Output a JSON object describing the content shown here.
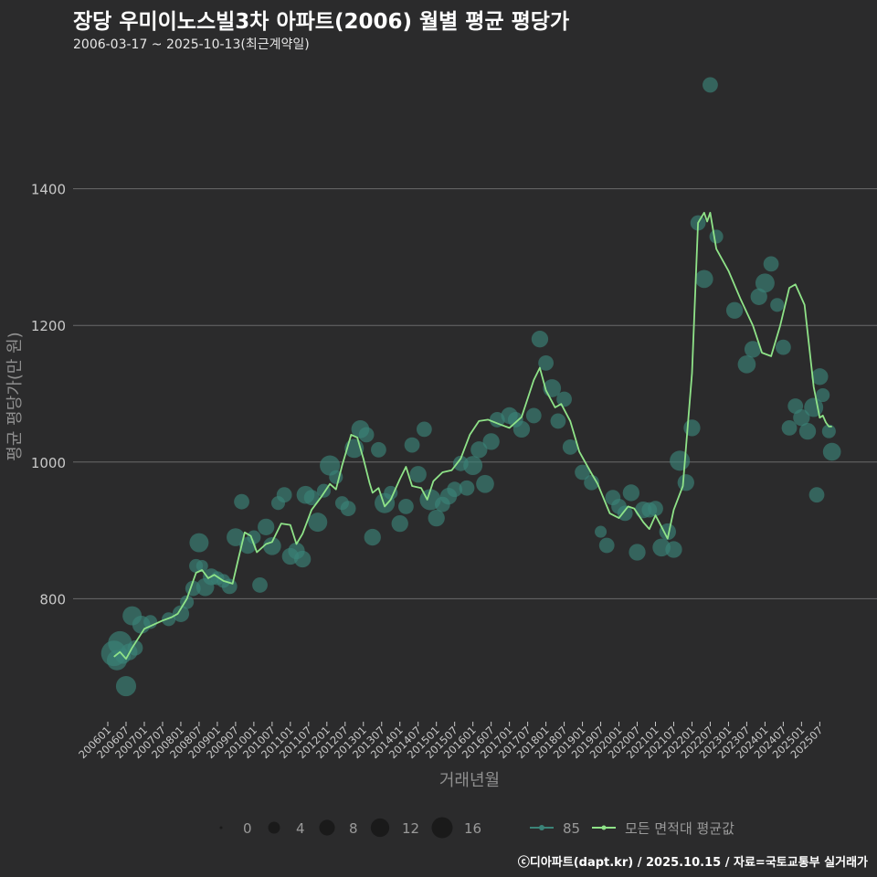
{
  "title": "장당 우미이노스빌3차 아파트(2006) 월별 평균 평당가",
  "subtitle": "2006-03-17 ~ 2025-10-13(최근계약일)",
  "credit": "ⓒ디아파트(dapt.kr) / 2025.10.15 / 자료=국토교통부 실거래가",
  "colors": {
    "background": "#2b2b2c",
    "grid": "#6a6a6a",
    "line": "#8fe388",
    "point": "#3b8378",
    "legend_size_point": "#1a1a1a",
    "axis_text": "#c8c8c8"
  },
  "chart_data": {
    "type": "line+scatter",
    "xlabel": "거래년월",
    "ylabel": "평균 평당가(만 원)",
    "ylim": [
      620,
      1580
    ],
    "yticks": [
      800,
      1000,
      1200,
      1400
    ],
    "xlim": [
      "2006-01",
      "2025-12"
    ],
    "xticks": [
      "200601",
      "200607",
      "200701",
      "200707",
      "200801",
      "200807",
      "200901",
      "200907",
      "201001",
      "201007",
      "201101",
      "201107",
      "201201",
      "201207",
      "201301",
      "201307",
      "201401",
      "201407",
      "201501",
      "201507",
      "201601",
      "201607",
      "201701",
      "201707",
      "201801",
      "201807",
      "201901",
      "201907",
      "202001",
      "202007",
      "202101",
      "202107",
      "202201",
      "202207",
      "202301",
      "202307",
      "202401",
      "202407",
      "202501",
      "202507"
    ],
    "legend_size": {
      "title": "",
      "values": [
        0,
        4,
        8,
        12,
        16
      ]
    },
    "legend_series": [
      {
        "name": "85",
        "kind": "point-line"
      },
      {
        "name": "모든 면적대 평균값",
        "kind": "line"
      }
    ],
    "series_line": {
      "name": "모든 면적대 평균값",
      "points": [
        [
          "2006-03",
          715
        ],
        [
          "2006-05",
          722
        ],
        [
          "2006-07",
          712
        ],
        [
          "2006-09",
          728
        ],
        [
          "2007-01",
          756
        ],
        [
          "2007-07",
          768
        ],
        [
          "2007-10",
          773
        ],
        [
          "2007-12",
          778
        ],
        [
          "2008-03",
          800
        ],
        [
          "2008-06",
          838
        ],
        [
          "2008-08",
          842
        ],
        [
          "2008-10",
          830
        ],
        [
          "2008-12",
          835
        ],
        [
          "2009-03",
          826
        ],
        [
          "2009-06",
          822
        ],
        [
          "2009-08",
          860
        ],
        [
          "2009-10",
          897
        ],
        [
          "2009-12",
          892
        ],
        [
          "2010-02",
          868
        ],
        [
          "2010-05",
          880
        ],
        [
          "2010-07",
          883
        ],
        [
          "2010-10",
          910
        ],
        [
          "2011-01",
          908
        ],
        [
          "2011-03",
          880
        ],
        [
          "2011-05",
          895
        ],
        [
          "2011-08",
          930
        ],
        [
          "2011-11",
          948
        ],
        [
          "2012-02",
          968
        ],
        [
          "2012-04",
          960
        ],
        [
          "2012-06",
          995
        ],
        [
          "2012-09",
          1040
        ],
        [
          "2012-11",
          1036
        ],
        [
          "2013-01",
          1005
        ],
        [
          "2013-03",
          970
        ],
        [
          "2013-04",
          955
        ],
        [
          "2013-06",
          962
        ],
        [
          "2013-08",
          935
        ],
        [
          "2013-10",
          945
        ],
        [
          "2014-01",
          975
        ],
        [
          "2014-03",
          993
        ],
        [
          "2014-05",
          965
        ],
        [
          "2014-08",
          962
        ],
        [
          "2014-10",
          945
        ],
        [
          "2014-12",
          972
        ],
        [
          "2015-03",
          985
        ],
        [
          "2015-06",
          988
        ],
        [
          "2015-09",
          1005
        ],
        [
          "2015-12",
          1040
        ],
        [
          "2016-03",
          1060
        ],
        [
          "2016-06",
          1062
        ],
        [
          "2016-10",
          1055
        ],
        [
          "2017-01",
          1050
        ],
        [
          "2017-05",
          1066
        ],
        [
          "2017-09",
          1120
        ],
        [
          "2017-11",
          1138
        ],
        [
          "2018-01",
          1105
        ],
        [
          "2018-04",
          1080
        ],
        [
          "2018-06",
          1085
        ],
        [
          "2018-09",
          1060
        ],
        [
          "2018-12",
          1015
        ],
        [
          "2019-04",
          983
        ],
        [
          "2019-06",
          968
        ],
        [
          "2019-10",
          925
        ],
        [
          "2020-01",
          918
        ],
        [
          "2020-04",
          935
        ],
        [
          "2020-06",
          932
        ],
        [
          "2020-09",
          912
        ],
        [
          "2020-11",
          902
        ],
        [
          "2021-01",
          922
        ],
        [
          "2021-03",
          905
        ],
        [
          "2021-05",
          888
        ],
        [
          "2021-07",
          930
        ],
        [
          "2021-10",
          965
        ],
        [
          "2022-01",
          1130
        ],
        [
          "2022-03",
          1350
        ],
        [
          "2022-05",
          1365
        ],
        [
          "2022-06",
          1352
        ],
        [
          "2022-07",
          1365
        ],
        [
          "2022-09",
          1312
        ],
        [
          "2023-01",
          1280
        ],
        [
          "2023-05",
          1238
        ],
        [
          "2023-09",
          1200
        ],
        [
          "2023-12",
          1160
        ],
        [
          "2024-03",
          1155
        ],
        [
          "2024-06",
          1200
        ],
        [
          "2024-09",
          1255
        ],
        [
          "2024-11",
          1260
        ],
        [
          "2025-02",
          1230
        ],
        [
          "2025-05",
          1110
        ],
        [
          "2025-07",
          1065
        ],
        [
          "2025-08",
          1068
        ],
        [
          "2025-09",
          1058
        ],
        [
          "2025-10",
          1052
        ],
        [
          "2025-11",
          1052
        ]
      ]
    },
    "series_points": {
      "name": "85",
      "points": [
        [
          "2006-03",
          720,
          14
        ],
        [
          "2006-04",
          710,
          8
        ],
        [
          "2006-05",
          735,
          12
        ],
        [
          "2006-06",
          716,
          4
        ],
        [
          "2006-07",
          672,
          8
        ],
        [
          "2006-08",
          722,
          5
        ],
        [
          "2006-09",
          775,
          7
        ],
        [
          "2006-10",
          728,
          4
        ],
        [
          "2006-12",
          762,
          6
        ],
        [
          "2007-03",
          766,
          3
        ],
        [
          "2007-09",
          770,
          3
        ],
        [
          "2008-01",
          778,
          5
        ],
        [
          "2008-03",
          795,
          3
        ],
        [
          "2008-05",
          815,
          4
        ],
        [
          "2008-06",
          848,
          3
        ],
        [
          "2008-07",
          882,
          7
        ],
        [
          "2008-08",
          848,
          2
        ],
        [
          "2008-09",
          817,
          6
        ],
        [
          "2008-11",
          832,
          5
        ],
        [
          "2009-01",
          830,
          3
        ],
        [
          "2009-03",
          826,
          3
        ],
        [
          "2009-05",
          818,
          4
        ],
        [
          "2009-07",
          890,
          6
        ],
        [
          "2009-09",
          942,
          4
        ],
        [
          "2009-11",
          878,
          5
        ],
        [
          "2010-01",
          890,
          3
        ],
        [
          "2010-03",
          820,
          4
        ],
        [
          "2010-05",
          905,
          5
        ],
        [
          "2010-07",
          877,
          6
        ],
        [
          "2010-09",
          940,
          3
        ],
        [
          "2010-11",
          952,
          4
        ],
        [
          "2011-01",
          862,
          5
        ],
        [
          "2011-03",
          870,
          5
        ],
        [
          "2011-05",
          858,
          5
        ],
        [
          "2011-06",
          952,
          6
        ],
        [
          "2011-08",
          948,
          4
        ],
        [
          "2011-10",
          912,
          7
        ],
        [
          "2011-12",
          958,
          3
        ],
        [
          "2012-02",
          995,
          8
        ],
        [
          "2012-04",
          978,
          3
        ],
        [
          "2012-06",
          940,
          3
        ],
        [
          "2012-08",
          932,
          4
        ],
        [
          "2012-10",
          1020,
          7
        ],
        [
          "2012-12",
          1048,
          6
        ],
        [
          "2013-02",
          1040,
          4
        ],
        [
          "2013-04",
          890,
          5
        ],
        [
          "2013-06",
          1018,
          4
        ],
        [
          "2013-08",
          940,
          8
        ],
        [
          "2013-10",
          955,
          3
        ],
        [
          "2014-01",
          910,
          5
        ],
        [
          "2014-03",
          935,
          4
        ],
        [
          "2014-05",
          1025,
          4
        ],
        [
          "2014-07",
          982,
          5
        ],
        [
          "2014-09",
          1048,
          4
        ],
        [
          "2014-11",
          945,
          9
        ],
        [
          "2015-01",
          918,
          5
        ],
        [
          "2015-03",
          938,
          4
        ],
        [
          "2015-05",
          950,
          5
        ],
        [
          "2015-07",
          960,
          4
        ],
        [
          "2015-09",
          998,
          4
        ],
        [
          "2015-11",
          962,
          4
        ],
        [
          "2016-01",
          995,
          7
        ],
        [
          "2016-03",
          1018,
          5
        ],
        [
          "2016-05",
          968,
          6
        ],
        [
          "2016-07",
          1030,
          5
        ],
        [
          "2016-09",
          1062,
          4
        ],
        [
          "2017-01",
          1068,
          5
        ],
        [
          "2017-03",
          1062,
          4
        ],
        [
          "2017-05",
          1048,
          5
        ],
        [
          "2017-09",
          1068,
          4
        ],
        [
          "2017-11",
          1180,
          5
        ],
        [
          "2018-01",
          1145,
          4
        ],
        [
          "2018-03",
          1108,
          6
        ],
        [
          "2018-05",
          1060,
          4
        ],
        [
          "2018-07",
          1092,
          4
        ],
        [
          "2018-09",
          1022,
          4
        ],
        [
          "2019-01",
          985,
          4
        ],
        [
          "2019-04",
          970,
          4
        ],
        [
          "2019-07",
          898,
          2
        ],
        [
          "2019-09",
          878,
          4
        ],
        [
          "2019-11",
          948,
          4
        ],
        [
          "2020-01",
          935,
          4
        ],
        [
          "2020-03",
          925,
          4
        ],
        [
          "2020-05",
          955,
          5
        ],
        [
          "2020-07",
          868,
          5
        ],
        [
          "2020-09",
          930,
          5
        ],
        [
          "2020-11",
          930,
          4
        ],
        [
          "2021-01",
          932,
          4
        ],
        [
          "2021-03",
          875,
          6
        ],
        [
          "2021-05",
          898,
          5
        ],
        [
          "2021-07",
          872,
          5
        ],
        [
          "2021-09",
          1002,
          8
        ],
        [
          "2021-11",
          970,
          5
        ],
        [
          "2022-01",
          1050,
          5
        ],
        [
          "2022-03",
          1350,
          4
        ],
        [
          "2022-05",
          1268,
          6
        ],
        [
          "2022-07",
          1552,
          4
        ],
        [
          "2022-09",
          1330,
          3
        ],
        [
          "2023-03",
          1222,
          5
        ],
        [
          "2023-07",
          1143,
          6
        ],
        [
          "2023-09",
          1165,
          5
        ],
        [
          "2023-11",
          1242,
          5
        ],
        [
          "2024-01",
          1262,
          7
        ],
        [
          "2024-03",
          1290,
          4
        ],
        [
          "2024-05",
          1230,
          3
        ],
        [
          "2024-07",
          1168,
          4
        ],
        [
          "2024-09",
          1050,
          4
        ],
        [
          "2024-11",
          1082,
          4
        ],
        [
          "2025-01",
          1065,
          5
        ],
        [
          "2025-03",
          1045,
          5
        ],
        [
          "2025-05",
          1080,
          7
        ],
        [
          "2025-06",
          952,
          4
        ],
        [
          "2025-07",
          1125,
          5
        ],
        [
          "2025-08",
          1098,
          3
        ],
        [
          "2025-10",
          1045,
          3
        ],
        [
          "2025-11",
          1015,
          6
        ]
      ]
    }
  }
}
